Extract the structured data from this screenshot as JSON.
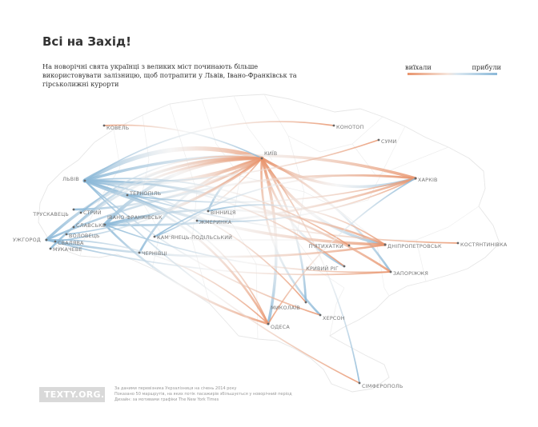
{
  "header": {
    "title": "Всі на Захід!",
    "subtitle": "На новорічні свята українці з великих міст починають більше використовувати залізницю, щоб потрапити у Львів, Івано-Франківськ та гірськолижні курорти"
  },
  "legend": {
    "departed": "виїхали",
    "arrived": "прибули",
    "departed_color": "#e9946c",
    "arrived_color": "#8ab8d8"
  },
  "footer": {
    "logo": "TEXTY.ORG.UA",
    "credits": [
      "За даними перевізника Укрзалізниця на січень 2014 року",
      "Показано 50 маршрутів, на яких потік пасажирів збільшується у новорічний період",
      "Дизайн: за мотивами графіки The New York Times"
    ]
  },
  "cities": [
    {
      "id": "kovel",
      "name": "КОВЕЛЬ"
    },
    {
      "id": "konotop",
      "name": "КОНОТОП"
    },
    {
      "id": "sumy",
      "name": "СУМИ"
    },
    {
      "id": "kyiv",
      "name": "КИЇВ"
    },
    {
      "id": "kharkiv",
      "name": "ХАРКІВ"
    },
    {
      "id": "lviv",
      "name": "ЛЬВІВ"
    },
    {
      "id": "ternopil",
      "name": "ТЕРНОПІЛЬ"
    },
    {
      "id": "truskavets",
      "name": "ТРУСКАВЕЦЬ"
    },
    {
      "id": "stryi",
      "name": "СТРИЙ"
    },
    {
      "id": "vinnytsia",
      "name": "ВІННИЦЯ"
    },
    {
      "id": "zhmerynka",
      "name": "ЖМЕРИНКА"
    },
    {
      "id": "ivano_frankivsk",
      "name": "ІВАНО-ФРАНКІВСЬК"
    },
    {
      "id": "slavske",
      "name": "СЛАВСЬКЕ"
    },
    {
      "id": "volovets",
      "name": "ВОЛОВЕЦЬ"
    },
    {
      "id": "uzhhorod",
      "name": "УЖГОРОД"
    },
    {
      "id": "svaliava",
      "name": "СВАЛЯВА"
    },
    {
      "id": "mukachevo",
      "name": "МУКАЧЕВЕ"
    },
    {
      "id": "kamianets",
      "name": "КАМ'ЯНЕЦЬ-ПОДІЛЬСЬКИЙ"
    },
    {
      "id": "chernivtsi",
      "name": "ЧЕРНІВЦІ"
    },
    {
      "id": "pyatykhatky",
      "name": "П'ЯТИХАТКИ"
    },
    {
      "id": "dnipropetrovsk",
      "name": "ДНІПРОПЕТРОВСЬК"
    },
    {
      "id": "kostiantynivka",
      "name": "КОСТЯНТИНІВКА"
    },
    {
      "id": "kryvyi_rih",
      "name": "КРИВИЙ РІГ"
    },
    {
      "id": "zaporizhzhia",
      "name": "ЗАПОРІЖЖЯ"
    },
    {
      "id": "mykolaiv",
      "name": "МИКОЛАЇВ"
    },
    {
      "id": "kherson",
      "name": "ХЕРСОН"
    },
    {
      "id": "odesa",
      "name": "ОДЕСА"
    },
    {
      "id": "simferopol",
      "name": "СІМФЕРОПОЛЬ"
    }
  ],
  "routes": [
    {
      "from": "kyiv",
      "to": "lviv",
      "weight": 5
    },
    {
      "from": "kyiv",
      "to": "lviv",
      "weight": 4
    },
    {
      "from": "kyiv",
      "to": "ivano_frankivsk",
      "weight": 4
    },
    {
      "from": "kyiv",
      "to": "ivano_frankivsk",
      "weight": 3
    },
    {
      "from": "kyiv",
      "to": "uzhhorod",
      "weight": 3
    },
    {
      "from": "kyiv",
      "to": "truskavets",
      "weight": 2
    },
    {
      "from": "kyiv",
      "to": "chernivtsi",
      "weight": 2
    },
    {
      "from": "kyiv",
      "to": "ternopil",
      "weight": 2
    },
    {
      "from": "kyiv",
      "to": "kharkiv",
      "weight": 3
    },
    {
      "from": "kyiv",
      "to": "odesa",
      "weight": 3
    },
    {
      "from": "kyiv",
      "to": "kherson",
      "weight": 2
    },
    {
      "from": "kyiv",
      "to": "mykolaiv",
      "weight": 2
    },
    {
      "from": "kyiv",
      "to": "dnipropetrovsk",
      "weight": 3
    },
    {
      "from": "kyiv",
      "to": "zaporizhzhia",
      "weight": 2
    },
    {
      "from": "kyiv",
      "to": "kryvyi_rih",
      "weight": 2
    },
    {
      "from": "kyiv",
      "to": "simferopol",
      "weight": 1
    },
    {
      "from": "kyiv",
      "to": "vinnytsia",
      "weight": 2
    },
    {
      "from": "kyiv",
      "to": "kamianets",
      "weight": 1
    },
    {
      "from": "kharkiv",
      "to": "lviv",
      "weight": 3
    },
    {
      "from": "kharkiv",
      "to": "ivano_frankivsk",
      "weight": 2
    },
    {
      "from": "kharkiv",
      "to": "uzhhorod",
      "weight": 2
    },
    {
      "from": "dnipropetrovsk",
      "to": "lviv",
      "weight": 3
    },
    {
      "from": "dnipropetrovsk",
      "to": "ivano_frankivsk",
      "weight": 2
    },
    {
      "from": "dnipropetrovsk",
      "to": "uzhhorod",
      "weight": 2
    },
    {
      "from": "zaporizhzhia",
      "to": "lviv",
      "weight": 2
    },
    {
      "from": "zaporizhzhia",
      "to": "uzhhorod",
      "weight": 1
    },
    {
      "from": "odesa",
      "to": "lviv",
      "weight": 2
    },
    {
      "from": "odesa",
      "to": "ivano_frankivsk",
      "weight": 2
    },
    {
      "from": "odesa",
      "to": "uzhhorod",
      "weight": 1
    },
    {
      "from": "kherson",
      "to": "lviv",
      "weight": 1
    },
    {
      "from": "mykolaiv",
      "to": "lviv",
      "weight": 1
    },
    {
      "from": "kostiantynivka",
      "to": "lviv",
      "weight": 1
    },
    {
      "from": "kryvyi_rih",
      "to": "lviv",
      "weight": 1
    },
    {
      "from": "sumy",
      "to": "lviv",
      "weight": 1
    },
    {
      "from": "konotop",
      "to": "lviv",
      "weight": 1
    },
    {
      "from": "simferopol",
      "to": "lviv",
      "weight": 1
    },
    {
      "from": "pyatykhatky",
      "to": "lviv",
      "weight": 1
    },
    {
      "from": "kharkiv",
      "to": "zhmerynka",
      "weight": 1
    },
    {
      "from": "dnipropetrovsk",
      "to": "vinnytsia",
      "weight": 1
    },
    {
      "from": "kovel",
      "to": "kyiv",
      "weight": 1
    },
    {
      "from": "kyiv",
      "to": "slavske",
      "weight": 2
    },
    {
      "from": "kyiv",
      "to": "volovets",
      "weight": 1
    },
    {
      "from": "kyiv",
      "to": "mukachevo",
      "weight": 2
    },
    {
      "from": "kyiv",
      "to": "svaliava",
      "weight": 1
    },
    {
      "from": "kyiv",
      "to": "stryi",
      "weight": 1
    },
    {
      "from": "kharkiv",
      "to": "ternopil",
      "weight": 1
    },
    {
      "from": "odesa",
      "to": "ternopil",
      "weight": 1
    },
    {
      "from": "zaporizhzhia",
      "to": "ivano_frankivsk",
      "weight": 1
    },
    {
      "from": "kharkiv",
      "to": "kamianets",
      "weight": 1
    },
    {
      "from": "odesa",
      "to": "kharkiv",
      "weight": 1
    }
  ]
}
